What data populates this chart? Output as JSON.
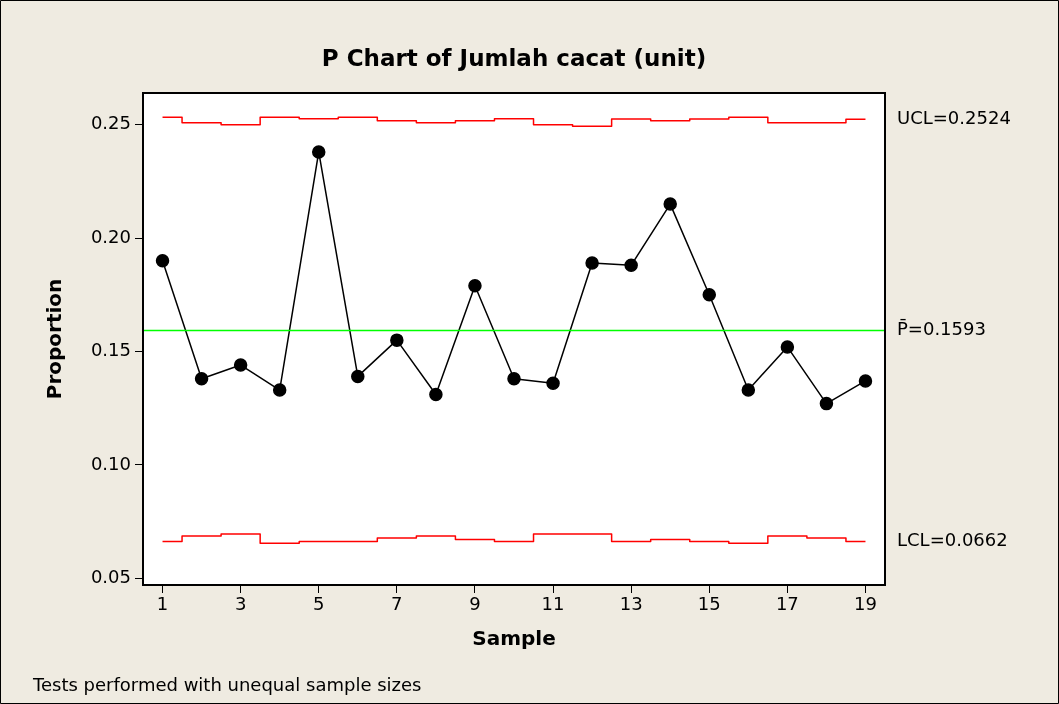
{
  "chart_data": {
    "type": "line",
    "title": "P Chart of Jumlah cacat (unit)",
    "xlabel": "Sample",
    "ylabel": "Proportion",
    "x": [
      1,
      2,
      3,
      4,
      5,
      6,
      7,
      8,
      9,
      10,
      11,
      12,
      13,
      14,
      15,
      16,
      17,
      18,
      19
    ],
    "series": [
      {
        "color": "#000000",
        "marker": "circle",
        "values": [
          0.19,
          0.138,
          0.144,
          0.133,
          0.238,
          0.139,
          0.155,
          0.131,
          0.179,
          0.138,
          0.136,
          0.189,
          0.188,
          0.215,
          0.175,
          0.133,
          0.152,
          0.127,
          0.137
        ]
      },
      {
        "type": "step",
        "name": "UCL=0.2524",
        "color": "#ff0000",
        "marker": "none",
        "values": [
          0.2533,
          0.2509,
          0.25,
          0.2533,
          0.2526,
          0.2533,
          0.2518,
          0.2509,
          0.2518,
          0.2526,
          0.25,
          0.2493,
          0.2525,
          0.2518,
          0.2525,
          0.2533,
          0.2509,
          0.2509,
          0.2524
        ]
      },
      {
        "type": "step",
        "name": "LCL=0.0662",
        "color": "#ff0000",
        "marker": "none",
        "values": [
          0.0662,
          0.0686,
          0.0695,
          0.0654,
          0.0662,
          0.0662,
          0.0677,
          0.0686,
          0.0671,
          0.0662,
          0.0695,
          0.0695,
          0.0662,
          0.0671,
          0.0662,
          0.0654,
          0.0686,
          0.0677,
          0.0662
        ]
      }
    ],
    "ref_lines": [
      {
        "axis": "y",
        "value": 0.1593,
        "label": "P̄=0.1593",
        "color": "#00ff00"
      }
    ],
    "xlim": [
      0.5,
      19.5
    ],
    "xticks": [
      1,
      3,
      5,
      7,
      9,
      11,
      13,
      15,
      17,
      19
    ],
    "ylim": [
      0.047,
      0.264
    ],
    "yticks": [
      0.05,
      {
        "value": 0.1,
        "label": "0.10"
      },
      0.15,
      {
        "value": 0.2,
        "label": "0.20"
      },
      0.25
    ],
    "grid": false,
    "legend": false,
    "annotations": [
      "Tests performed with unequal sample sizes"
    ]
  }
}
